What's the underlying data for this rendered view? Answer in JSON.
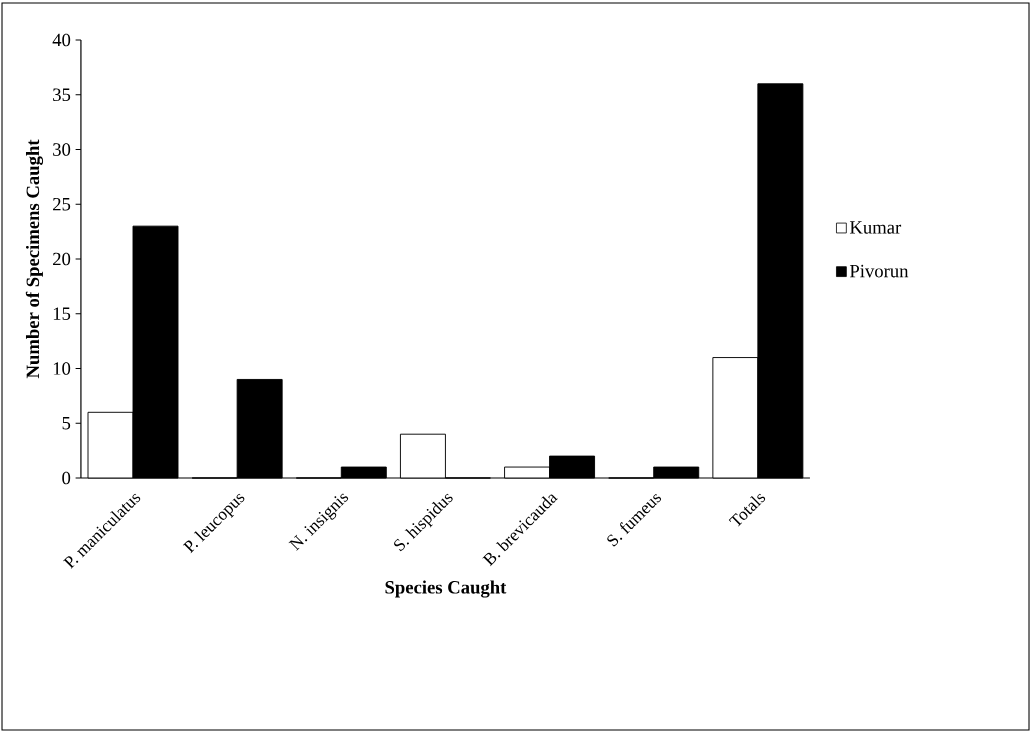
{
  "chart_data": {
    "type": "bar",
    "xlabel": "Species Caught",
    "ylabel": "Number of Specimens Caught",
    "categories": [
      "P. maniculatus",
      "P. leucopus",
      "N. insignis",
      "S. hispidus",
      "B. brevicauda",
      "S. fumeus",
      "Totals"
    ],
    "series": [
      {
        "name": "Kumar",
        "color": "#ffffff",
        "values": [
          6,
          0,
          0,
          4,
          1,
          0,
          11
        ]
      },
      {
        "name": "Pivorun",
        "color": "#000000",
        "values": [
          23,
          9,
          1,
          0,
          2,
          1,
          36
        ]
      }
    ],
    "ylim": [
      0,
      40
    ],
    "yticks": [
      0,
      5,
      10,
      15,
      20,
      25,
      30,
      35,
      40
    ],
    "grid": false,
    "legend": "right"
  }
}
